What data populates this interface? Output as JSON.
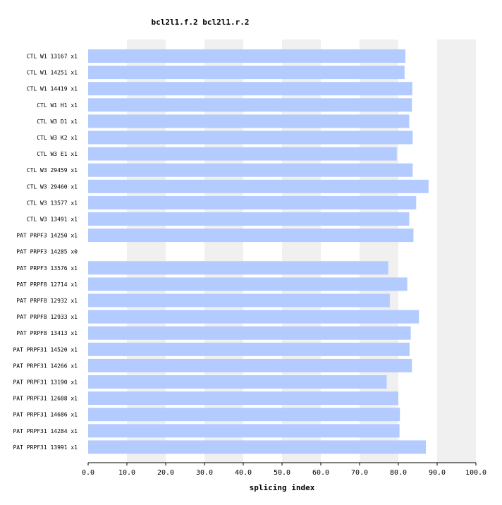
{
  "chart_data": {
    "type": "bar",
    "orientation": "horizontal",
    "title": "bcl2l1.f.2  bcl2l1.r.2",
    "xlabel": "splicing index",
    "ylabel": "",
    "xlim": [
      0,
      100
    ],
    "xticks": [
      "0.0",
      "10.0",
      "20.0",
      "30.0",
      "40.0",
      "50.0",
      "60.0",
      "70.0",
      "80.0",
      "90.0",
      "100.0"
    ],
    "grid": "alternating vertical bands",
    "colors": {
      "bar": "#b3cbff",
      "band": "#f0f0f0",
      "axis": "#000000"
    },
    "categories": [
      "CTL W1 13167 x1",
      "CTL W1 14251 x1",
      "CTL W1 14419 x1",
      "CTL W1 H1 x1",
      "CTL W3 D1 x1",
      "CTL W3 K2 x1",
      "CTL W3 E1 x1",
      "CTL W3 29459 x1",
      "CTL W3 29460 x1",
      "CTL W3 13577 x1",
      "CTL W3 13491 x1",
      "PAT PRPF3 14250 x1",
      "PAT PRPF3 14285 x0",
      "PAT PRPF3 13576 x1",
      "PAT PRPF8 12714 x1",
      "PAT PRPF8 12932 x1",
      "PAT PRPF8 12933 x1",
      "PAT PRPF8 13413 x1",
      "PAT PRPF31 14520 x1",
      "PAT PRPF31 14266 x1",
      "PAT PRPF31 13190 x1",
      "PAT PRPF31 12688 x1",
      "PAT PRPF31 14686 x1",
      "PAT PRPF31 14284 x1",
      "PAT PRPF31 13991 x1"
    ],
    "values": [
      81.8,
      81.6,
      83.6,
      83.5,
      82.8,
      83.7,
      79.6,
      83.7,
      87.8,
      84.6,
      82.8,
      83.9,
      null,
      77.4,
      82.3,
      77.8,
      85.3,
      83.2,
      82.9,
      83.5,
      77.0,
      80.0,
      80.4,
      80.3,
      87.1
    ]
  }
}
